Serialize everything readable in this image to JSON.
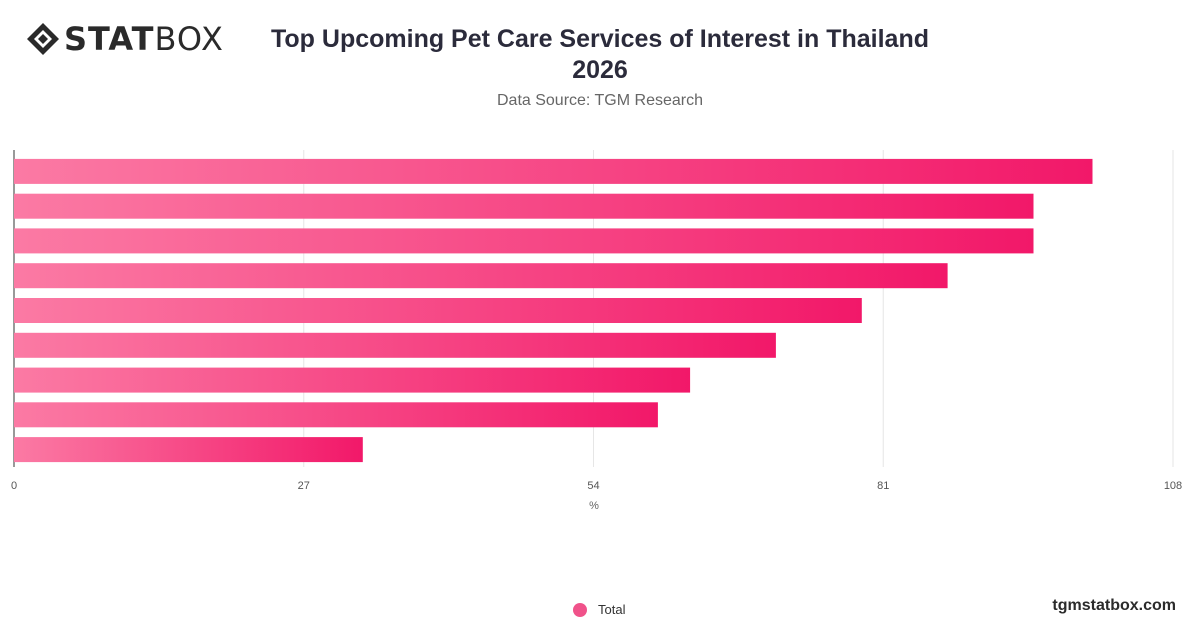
{
  "brand": {
    "bold": "STAT",
    "light": "BOX",
    "icon": "statbox-diamond-icon"
  },
  "header": {
    "title": "Top Upcoming Pet Care Services of Interest in Thailand 2026",
    "subtitle": "Data Source: TGM Research"
  },
  "chart_data": {
    "type": "bar",
    "orientation": "horizontal",
    "categories": [
      "",
      "",
      "",
      "",
      "",
      "",
      "",
      "",
      ""
    ],
    "series": [
      {
        "name": "Total",
        "values": [
          100.5,
          95,
          95,
          87,
          79,
          71,
          63,
          60,
          32.5
        ]
      }
    ],
    "xlabel": "%",
    "xlim": [
      0,
      108
    ],
    "xticks": [
      0,
      27,
      54,
      81,
      108
    ],
    "grid": true,
    "legend_position": "bottom",
    "bar_gradient": [
      "#fb7aa4",
      "#f21869"
    ]
  },
  "legend": {
    "label": "Total"
  },
  "footer": {
    "watermark": "tgmstatbox.com"
  }
}
